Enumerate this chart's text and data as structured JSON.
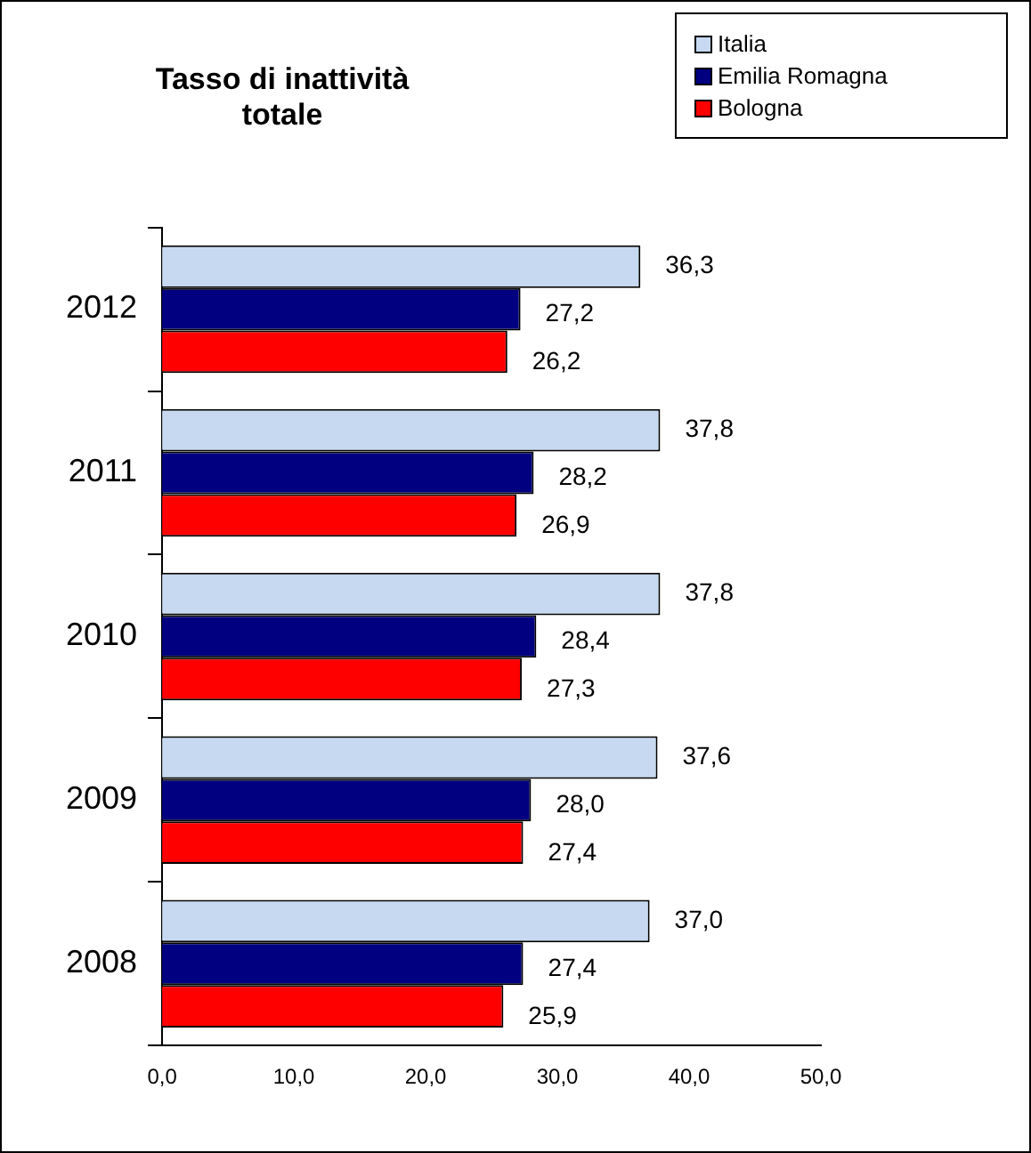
{
  "chart_data": {
    "type": "bar",
    "orientation": "horizontal",
    "title": "Tasso di inattività totale",
    "categories": [
      "2012",
      "2011",
      "2010",
      "2009",
      "2008"
    ],
    "series": [
      {
        "name": "Italia",
        "color": "#c6d9f1",
        "values": [
          36.3,
          37.8,
          37.8,
          37.6,
          37.0
        ],
        "value_labels": [
          "36,3",
          "37,8",
          "37,8",
          "37,6",
          "37,0"
        ]
      },
      {
        "name": "Emilia Romagna",
        "color": "#000080",
        "values": [
          27.2,
          28.2,
          28.4,
          28.0,
          27.4
        ],
        "value_labels": [
          "27,2",
          "28,2",
          "28,4",
          "28,0",
          "27,4"
        ]
      },
      {
        "name": "Bologna",
        "color": "#ff0000",
        "values": [
          26.2,
          26.9,
          27.3,
          27.4,
          25.9
        ],
        "value_labels": [
          "26,2",
          "26,9",
          "27,3",
          "27,4",
          "25,9"
        ]
      }
    ],
    "xlim": [
      0,
      50
    ],
    "xticks": [
      {
        "value": 0,
        "label": "0,0"
      },
      {
        "value": 10,
        "label": "10,0"
      },
      {
        "value": 20,
        "label": "20,0"
      },
      {
        "value": 30,
        "label": "30,0"
      },
      {
        "value": 40,
        "label": "40,0"
      },
      {
        "value": 50,
        "label": "50,0"
      }
    ],
    "legend": "top right"
  }
}
